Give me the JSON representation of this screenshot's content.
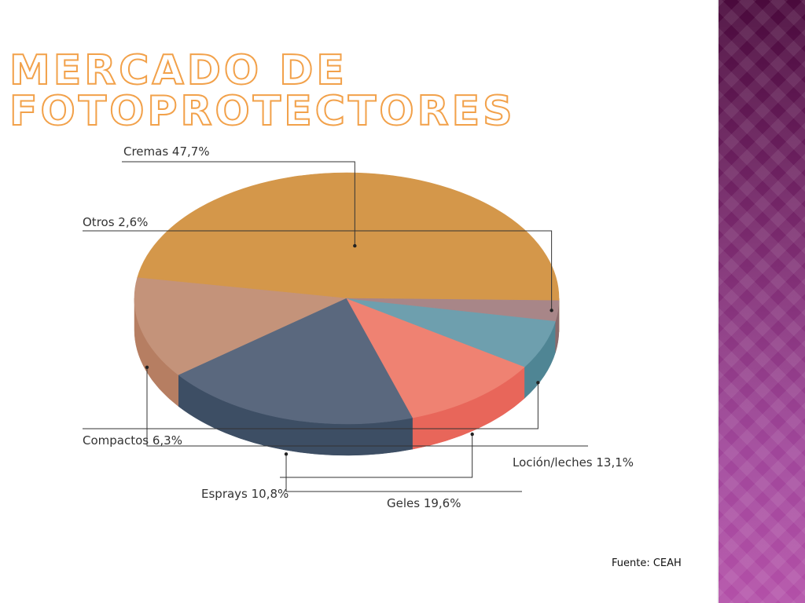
{
  "slide": {
    "title": "MERCADO DE FOTOPROTECTORES",
    "source": "Fuente: CEAH",
    "accent_color": "#f2a14a",
    "band_color": "#8a3580"
  },
  "chart_data": {
    "type": "pie",
    "title": "",
    "categories": [
      "Cremas",
      "Loción/leches",
      "Geles",
      "Esprays",
      "Compactos",
      "Otros"
    ],
    "values": [
      47.7,
      13.1,
      19.6,
      10.8,
      6.3,
      2.6
    ],
    "labels": [
      "Cremas 47,7%",
      "Loción/leches 13,1%",
      "Geles 19,6%",
      "Esprays 10,8%",
      "Compactos 6,3%",
      "Otros 2,6%"
    ],
    "colors": [
      "#d4974a",
      "#c4937a",
      "#5a687e",
      "#ef8272",
      "#6e9fae",
      "#a88688"
    ],
    "side_colors": [
      "#b07a38",
      "#b67e62",
      "#3d4e64",
      "#e8665a",
      "#4f8594",
      "#8a6a6c"
    ],
    "legend": "callouts",
    "style": "3d"
  }
}
